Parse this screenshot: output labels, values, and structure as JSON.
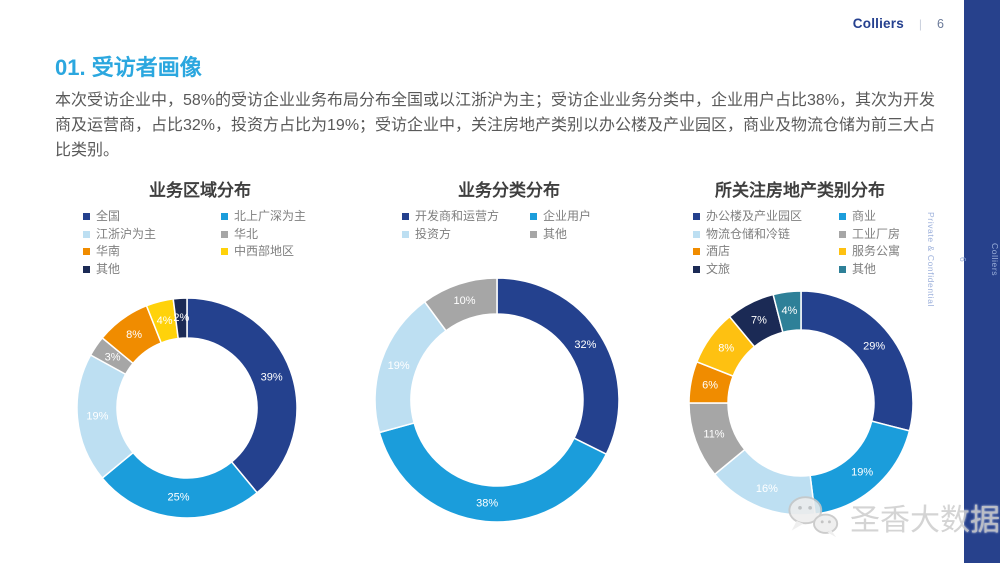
{
  "page": {
    "header_brand": "Colliers",
    "header_separator": "|",
    "page_number": "6",
    "sidebar": {
      "brand": "Colliers",
      "page_number": "6",
      "confidential": "Private & Confidential"
    },
    "title": "01. 受访者画像",
    "paragraph": "本次受访企业中，58%的受访企业业务布局分布全国或以江浙沪为主；受访企业业务分类中，企业用户占比38%，其次为开发商及运营商，占比32%，投资方占比为19%；受访企业中，关注房地产类别以办公楼及产业园区，商业及物流仓储为前三大占比类别。",
    "watermark_text": "圣香大数据",
    "watermark_icon": "wechat-icon"
  },
  "colors": {
    "accent_cyan": "#2BA7DF",
    "brand_navy": "#25408F",
    "rail_navy": "#27418C",
    "body_gray": "#595959",
    "legend_gray": "#7F7F7F"
  },
  "chart_data": [
    {
      "type": "pie",
      "subtype": "donut",
      "title": "业务区域分布",
      "categories": [
        "全国",
        "北上广深为主",
        "江浙沪为主",
        "华北",
        "华南",
        "中西部地区",
        "其他"
      ],
      "values": [
        39,
        25,
        19,
        3,
        8,
        4,
        2
      ],
      "labels": [
        "39%",
        "25%",
        "19%",
        "3%",
        "8%",
        "4%",
        "2%"
      ],
      "colors": [
        "#24418E",
        "#1B9DDB",
        "#BDDFF2",
        "#A6A6A6",
        "#F08C00",
        "#FFD20A",
        "#1B2A55"
      ],
      "legend_position": "top",
      "legend_columns": 2,
      "start_angle_deg": 0,
      "direction": "clockwise",
      "size": 240,
      "outer_r": 110,
      "inner_r": 70
    },
    {
      "type": "pie",
      "subtype": "donut",
      "title": "业务分类分布",
      "categories": [
        "开发商和运营方",
        "企业用户",
        "投资方",
        "其他"
      ],
      "values": [
        32,
        38,
        19,
        10
      ],
      "labels": [
        "32%",
        "38%",
        "19%",
        "10%"
      ],
      "colors": [
        "#24418E",
        "#1B9DDB",
        "#BDDFF2",
        "#A6A6A6"
      ],
      "legend_position": "top",
      "legend_columns": 2,
      "start_angle_deg": 0,
      "direction": "clockwise",
      "size": 250,
      "outer_r": 122,
      "inner_r": 86
    },
    {
      "type": "pie",
      "subtype": "donut",
      "title": "所关注房地产类别分布",
      "categories": [
        "办公楼及产业园区",
        "商业",
        "物流仓储和冷链",
        "工业厂房",
        "酒店",
        "服务公寓",
        "文旅",
        "其他"
      ],
      "values": [
        29,
        19,
        16,
        11,
        6,
        8,
        7,
        4
      ],
      "labels": [
        "29%",
        "19%",
        "16%",
        "11%",
        "6%",
        "8%",
        "7%",
        "4%"
      ],
      "colors": [
        "#24418E",
        "#1B9DDB",
        "#BDDFF2",
        "#A6A6A6",
        "#F08C00",
        "#FEC111",
        "#1B2A55",
        "#2E8098"
      ],
      "legend_position": "top",
      "legend_columns": 2,
      "start_angle_deg": 0,
      "direction": "clockwise",
      "size": 228,
      "outer_r": 112,
      "inner_r": 73
    }
  ]
}
